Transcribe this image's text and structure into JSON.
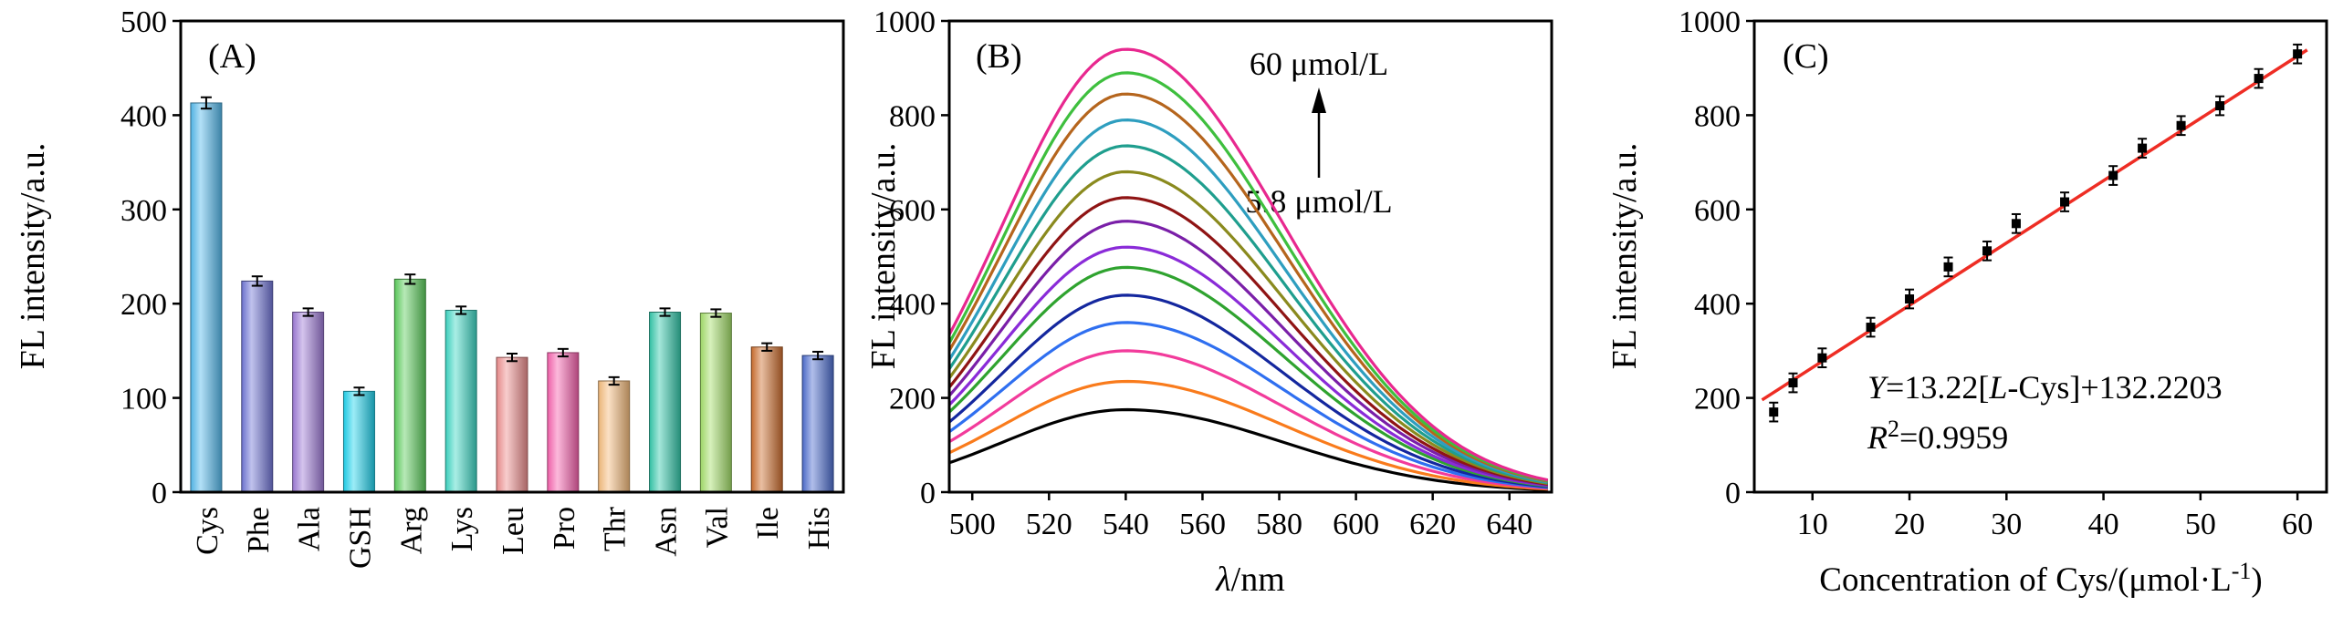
{
  "figure": {
    "background": "#ffffff",
    "text_color": "#000000"
  },
  "panel_a": {
    "tag": "(A)",
    "ylabel": "FL intensity/a.u."
  },
  "panel_b": {
    "tag": "(B)",
    "ylabel": "FL intensity/a.u.",
    "xlabel_lambda": "λ",
    "xlabel_unit": "/nm",
    "annotation_top": "60 μmol/L",
    "annotation_bottom": "5.8 μmol/L"
  },
  "panel_c": {
    "tag": "(C)",
    "ylabel": "FL intensity/a.u.",
    "xlabel_main": "Concentration of Cys/(μmol·L",
    "xlabel_sup": "-1",
    "xlabel_close": ")",
    "equation_y": "Y",
    "equation_seg1": "=13.22[",
    "equation_l": "L",
    "equation_seg2": "-Cys]+132.2203",
    "r_label": "R",
    "r_sup": "2",
    "r_value": "=0.9959"
  },
  "chart_data": [
    {
      "type": "bar",
      "panel": "(A)",
      "ylabel": "FL intensity/a.u.",
      "ylim": [
        0,
        500
      ],
      "yticks": [
        0,
        100,
        200,
        300,
        400,
        500
      ],
      "categories": [
        "Cys",
        "Phe",
        "Ala",
        "GSH",
        "Arg",
        "Lys",
        "Leu",
        "Pro",
        "Thr",
        "Asn",
        "Val",
        "Ile",
        "His"
      ],
      "values": [
        413,
        224,
        191,
        107,
        226,
        193,
        143,
        148,
        118,
        191,
        190,
        154,
        145
      ],
      "errors": [
        6,
        5,
        4,
        4,
        5,
        4,
        4,
        4,
        4,
        4,
        4,
        4,
        4
      ],
      "colors": [
        "#55bbee",
        "#7277d8",
        "#9f7bd8",
        "#22d4ee",
        "#5ecf5e",
        "#3fd9c6",
        "#ef8f8f",
        "#f964b0",
        "#f6bd7d",
        "#35c9ac",
        "#a5e06b",
        "#cf7030",
        "#4f6fd0"
      ]
    },
    {
      "type": "line",
      "panel": "(B)",
      "xlabel": "λ/nm",
      "ylabel": "FL intensity/a.u.",
      "xlim": [
        494,
        651
      ],
      "ylim": [
        0,
        1000
      ],
      "xticks": [
        500,
        520,
        540,
        560,
        580,
        600,
        620,
        640
      ],
      "yticks": [
        0,
        200,
        400,
        600,
        800,
        1000
      ],
      "peak_wavelength": 540,
      "sigma_left": 32,
      "sigma_right": 41,
      "concentration_range": "5.8–60 μmol/L",
      "series": [
        {
          "peak": 175,
          "color": "#000000"
        },
        {
          "peak": 235,
          "color": "#f97b1c"
        },
        {
          "peak": 300,
          "color": "#f23b9b"
        },
        {
          "peak": 360,
          "color": "#2f6ff0"
        },
        {
          "peak": 418,
          "color": "#14279e"
        },
        {
          "peak": 477,
          "color": "#2fa32f"
        },
        {
          "peak": 520,
          "color": "#8a2bd8"
        },
        {
          "peak": 575,
          "color": "#7a1fa8"
        },
        {
          "peak": 625,
          "color": "#8f1414"
        },
        {
          "peak": 680,
          "color": "#8a8a1e"
        },
        {
          "peak": 735,
          "color": "#1f9e8e"
        },
        {
          "peak": 790,
          "color": "#2e9ebf"
        },
        {
          "peak": 845,
          "color": "#b5651d"
        },
        {
          "peak": 890,
          "color": "#3ebf3e"
        },
        {
          "peak": 940,
          "color": "#e8288f"
        }
      ]
    },
    {
      "type": "scatter",
      "panel": "(C)",
      "xlabel": "Concentration of Cys/(μmol·L-1)",
      "ylabel": "FL intensity/a.u.",
      "xlim": [
        4,
        63
      ],
      "ylim": [
        0,
        1000
      ],
      "xticks": [
        10,
        20,
        30,
        40,
        50,
        60
      ],
      "yticks": [
        0,
        200,
        400,
        600,
        800,
        1000
      ],
      "x": [
        6,
        8,
        11,
        16,
        20,
        24,
        28,
        31,
        36,
        41,
        44,
        48,
        52,
        56,
        60
      ],
      "y": [
        170,
        232,
        285,
        350,
        410,
        478,
        512,
        570,
        616,
        672,
        730,
        778,
        820,
        878,
        930
      ],
      "yerr": 20,
      "marker_color": "#000000",
      "fit": {
        "slope": 13.22,
        "intercept": 132.2203,
        "r2": 0.9959,
        "color": "#ee2d24",
        "x_start": 4.8,
        "x_end": 61
      }
    }
  ]
}
